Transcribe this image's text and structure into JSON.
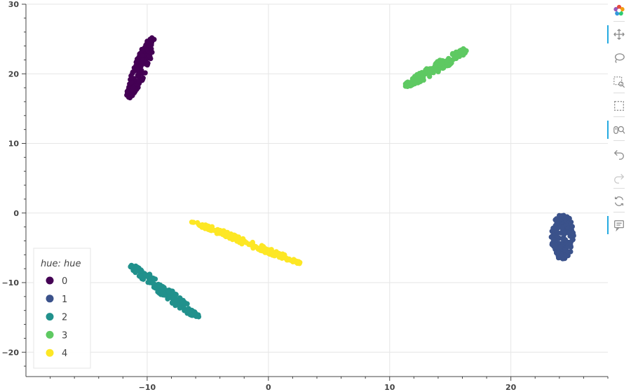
{
  "chart_data": {
    "type": "scatter",
    "title": "",
    "xlabel": "",
    "ylabel": "",
    "xlim": [
      -20,
      28
    ],
    "ylim": [
      -23.5,
      30
    ],
    "x_ticks": [
      -10,
      0,
      10,
      20
    ],
    "y_ticks": [
      -20,
      -10,
      0,
      10,
      20,
      30
    ],
    "x_tick_labels": [
      "−10",
      "0",
      "10",
      "20"
    ],
    "y_tick_labels": [
      "−20",
      "−10",
      "0",
      "10",
      "20",
      "30"
    ],
    "grid": true,
    "legend": {
      "title": "hue: hue",
      "placement": "bottom-left"
    },
    "series": [
      {
        "name": "0",
        "color": "#440154",
        "segment": [
          [
            -11.5,
            16.5
          ],
          [
            -9.6,
            25.2
          ]
        ],
        "width_data": 0.9
      },
      {
        "name": "1",
        "color": "#3b528b",
        "segment": [
          [
            24.2,
            -6.6
          ],
          [
            24.3,
            -0.3
          ]
        ],
        "width_data": 1.5
      },
      {
        "name": "2",
        "color": "#21918c",
        "segment": [
          [
            -11.3,
            -7.5
          ],
          [
            -5.8,
            -15.0
          ]
        ],
        "width_data": 0.9
      },
      {
        "name": "3",
        "color": "#5ec962",
        "segment": [
          [
            11.3,
            18.2
          ],
          [
            16.4,
            23.6
          ]
        ],
        "width_data": 0.9
      },
      {
        "name": "4",
        "color": "#fde725",
        "segment": [
          [
            -6.3,
            -1.2
          ],
          [
            2.6,
            -7.2
          ]
        ],
        "width_data": 0.6
      }
    ]
  },
  "toolbar": {
    "tools": [
      {
        "icon": "bokeh-logo-icon",
        "active": false
      },
      {
        "icon": "pan-icon",
        "active": true
      },
      {
        "icon": "lasso-select-icon",
        "active": false
      },
      {
        "icon": "box-zoom-icon",
        "active": false
      },
      {
        "icon": "box-select-icon",
        "active": false
      },
      {
        "icon": "wheel-zoom-icon",
        "active": true
      },
      {
        "icon": "undo-icon",
        "active": false
      },
      {
        "icon": "redo-icon",
        "active": false
      },
      {
        "icon": "reset-icon",
        "active": false
      },
      {
        "icon": "hover-icon",
        "active": true
      }
    ]
  }
}
